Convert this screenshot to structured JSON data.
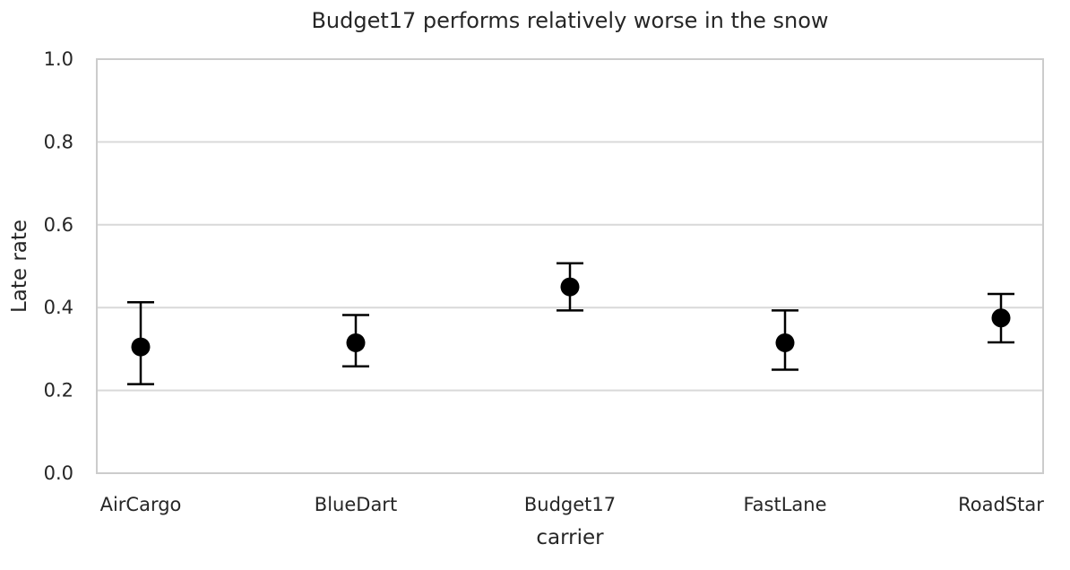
{
  "chart_data": {
    "type": "scatter",
    "title": "Budget17 performs relatively worse in the snow",
    "xlabel": "carrier",
    "ylabel": "Late rate",
    "categories": [
      "AirCargo",
      "BlueDart",
      "Budget17",
      "FastLane",
      "RoadStar"
    ],
    "series": [
      {
        "values": [
          0.305,
          0.315,
          0.45,
          0.315,
          0.375
        ],
        "error_low": [
          0.215,
          0.258,
          0.393,
          0.25,
          0.316
        ],
        "error_high": [
          0.413,
          0.382,
          0.507,
          0.393,
          0.433
        ]
      }
    ],
    "ylim": [
      0.0,
      1.0
    ],
    "yticks": [
      "0.0",
      "0.2",
      "0.4",
      "0.6",
      "0.8",
      "1.0"
    ],
    "grid": "horizontal",
    "colors": {
      "marker": "#000000",
      "errorbar": "#000000",
      "grid": "#d9d9d9",
      "frame": "#cccccc",
      "text": "#262626"
    }
  }
}
